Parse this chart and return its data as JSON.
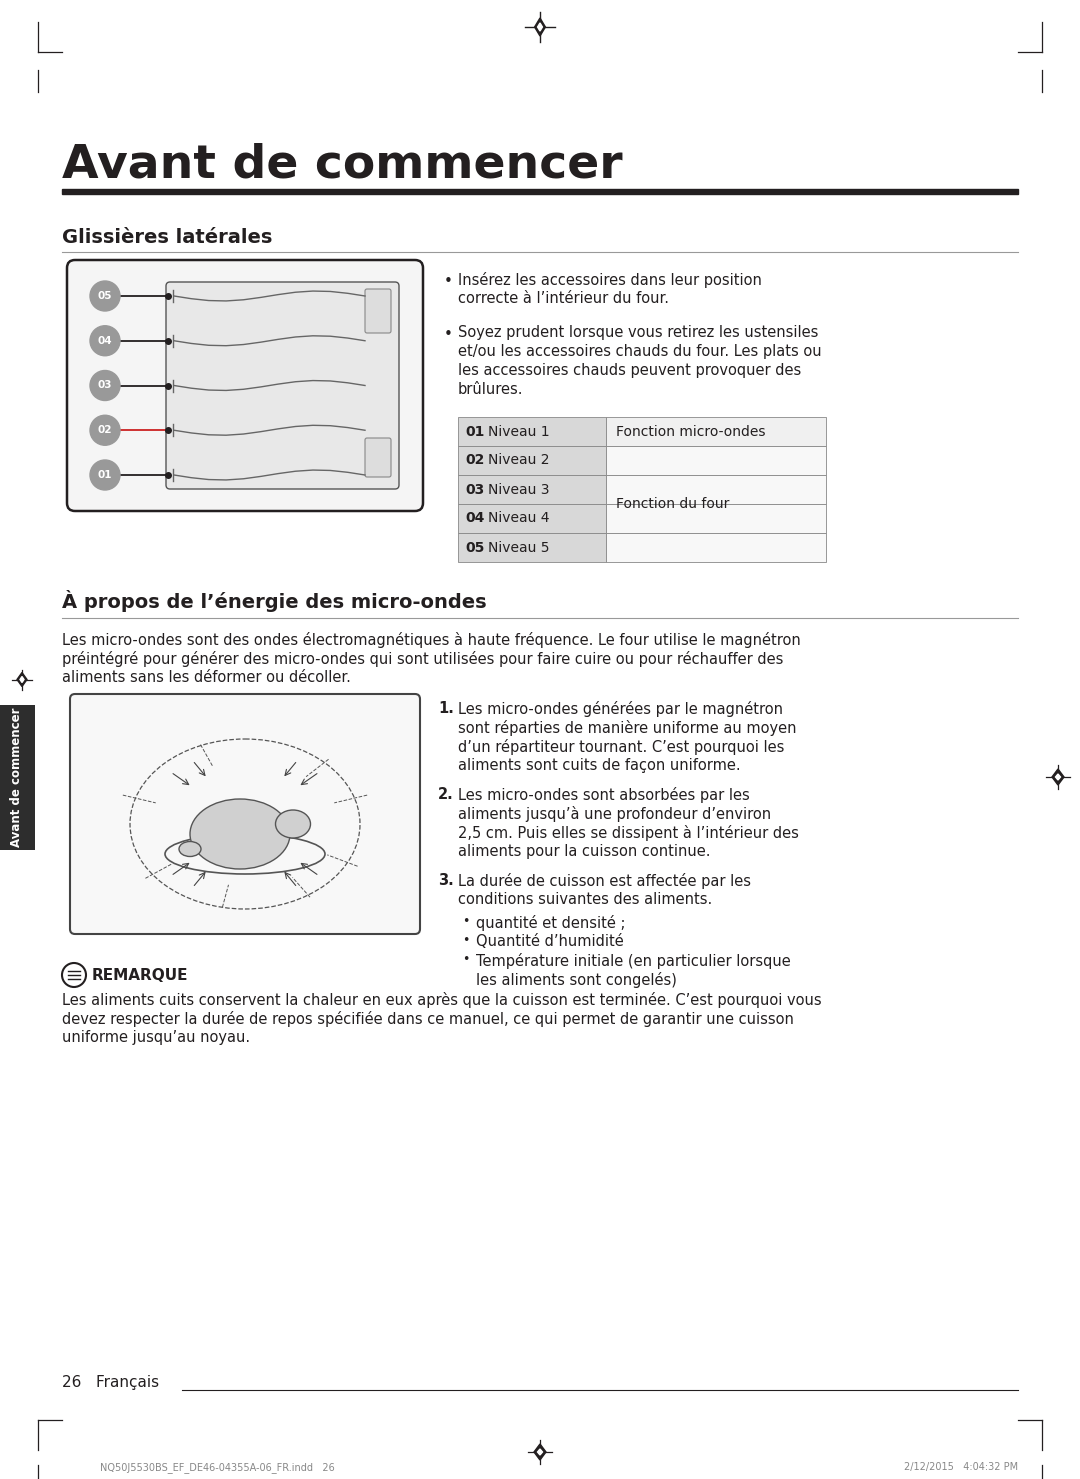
{
  "page_title": "Avant de commencer",
  "section1_title": "Glissières latérales",
  "section2_title": "À propos de l’énergie des micro-ondes",
  "bullet1_lines": [
    "Insérez les accessoires dans leur position",
    "correcte à l’intérieur du four."
  ],
  "bullet2_lines": [
    "Soyez prudent lorsque vous retirez les ustensiles",
    "et/ou les accessoires chauds du four. Les plats ou",
    "les accessoires chauds peuvent provoquer des",
    "brûlures."
  ],
  "table_rows": [
    {
      "num": "01",
      "level": "Niveau 1",
      "func": "Fonction micro-ondes"
    },
    {
      "num": "02",
      "level": "Niveau 2",
      "func": ""
    },
    {
      "num": "03",
      "level": "Niveau 3",
      "func": ""
    },
    {
      "num": "04",
      "level": "Niveau 4",
      "func": ""
    },
    {
      "num": "05",
      "level": "Niveau 5",
      "func": ""
    }
  ],
  "table_right_merged": "Fonction du four",
  "intro_lines": [
    "Les micro-ondes sont des ondes électromagnétiques à haute fréquence. Le four utilise le magnétron",
    "préintégré pour générer des micro-ondes qui sont utilisées pour faire cuire ou pour réchauffer des",
    "aliments sans les déformer ou décoller."
  ],
  "num1_lines": [
    "Les micro-ondes générées par le magnétron",
    "sont réparties de manière uniforme au moyen",
    "d’un répartiteur tournant. C’est pourquoi les",
    "aliments sont cuits de façon uniforme."
  ],
  "num2_lines": [
    "Les micro-ondes sont absorbées par les",
    "aliments jusqu’à une profondeur d’environ",
    "2,5 cm. Puis elles se dissipent à l’intérieur des",
    "aliments pour la cuisson continue."
  ],
  "num3_lines": [
    "La durée de cuisson est affectée par les",
    "conditions suivantes des aliments."
  ],
  "sub_bullets": [
    "quantité et densité ;",
    "Quantité d’humidité",
    "Température initiale (en particulier lorsque",
    "les aliments sont congelés)"
  ],
  "note_title": "REMARQUE",
  "note_lines": [
    "Les aliments cuits conservent la chaleur en eux après que la cuisson est terminée. C’est pourquoi vous",
    "devez respecter la durée de repos spécifiée dans ce manuel, ce qui permet de garantir une cuisson",
    "uniforme jusqu’au noyau."
  ],
  "footer_text": "26   Français",
  "footer_file": "NQ50J5530BS_EF_DE46-04355A-06_FR.indd   26",
  "footer_date": "2/12/2015   4:04:32 PM",
  "sidebar_text": "Avant de commencer",
  "bg_color": "#ffffff",
  "dark_color": "#231f20",
  "gray_color": "#888888",
  "light_gray": "#cccccc",
  "table_bg_left": "#d8d8d8",
  "table_bg_right": "#f0f0f0",
  "sidebar_bg": "#2d2d2d"
}
